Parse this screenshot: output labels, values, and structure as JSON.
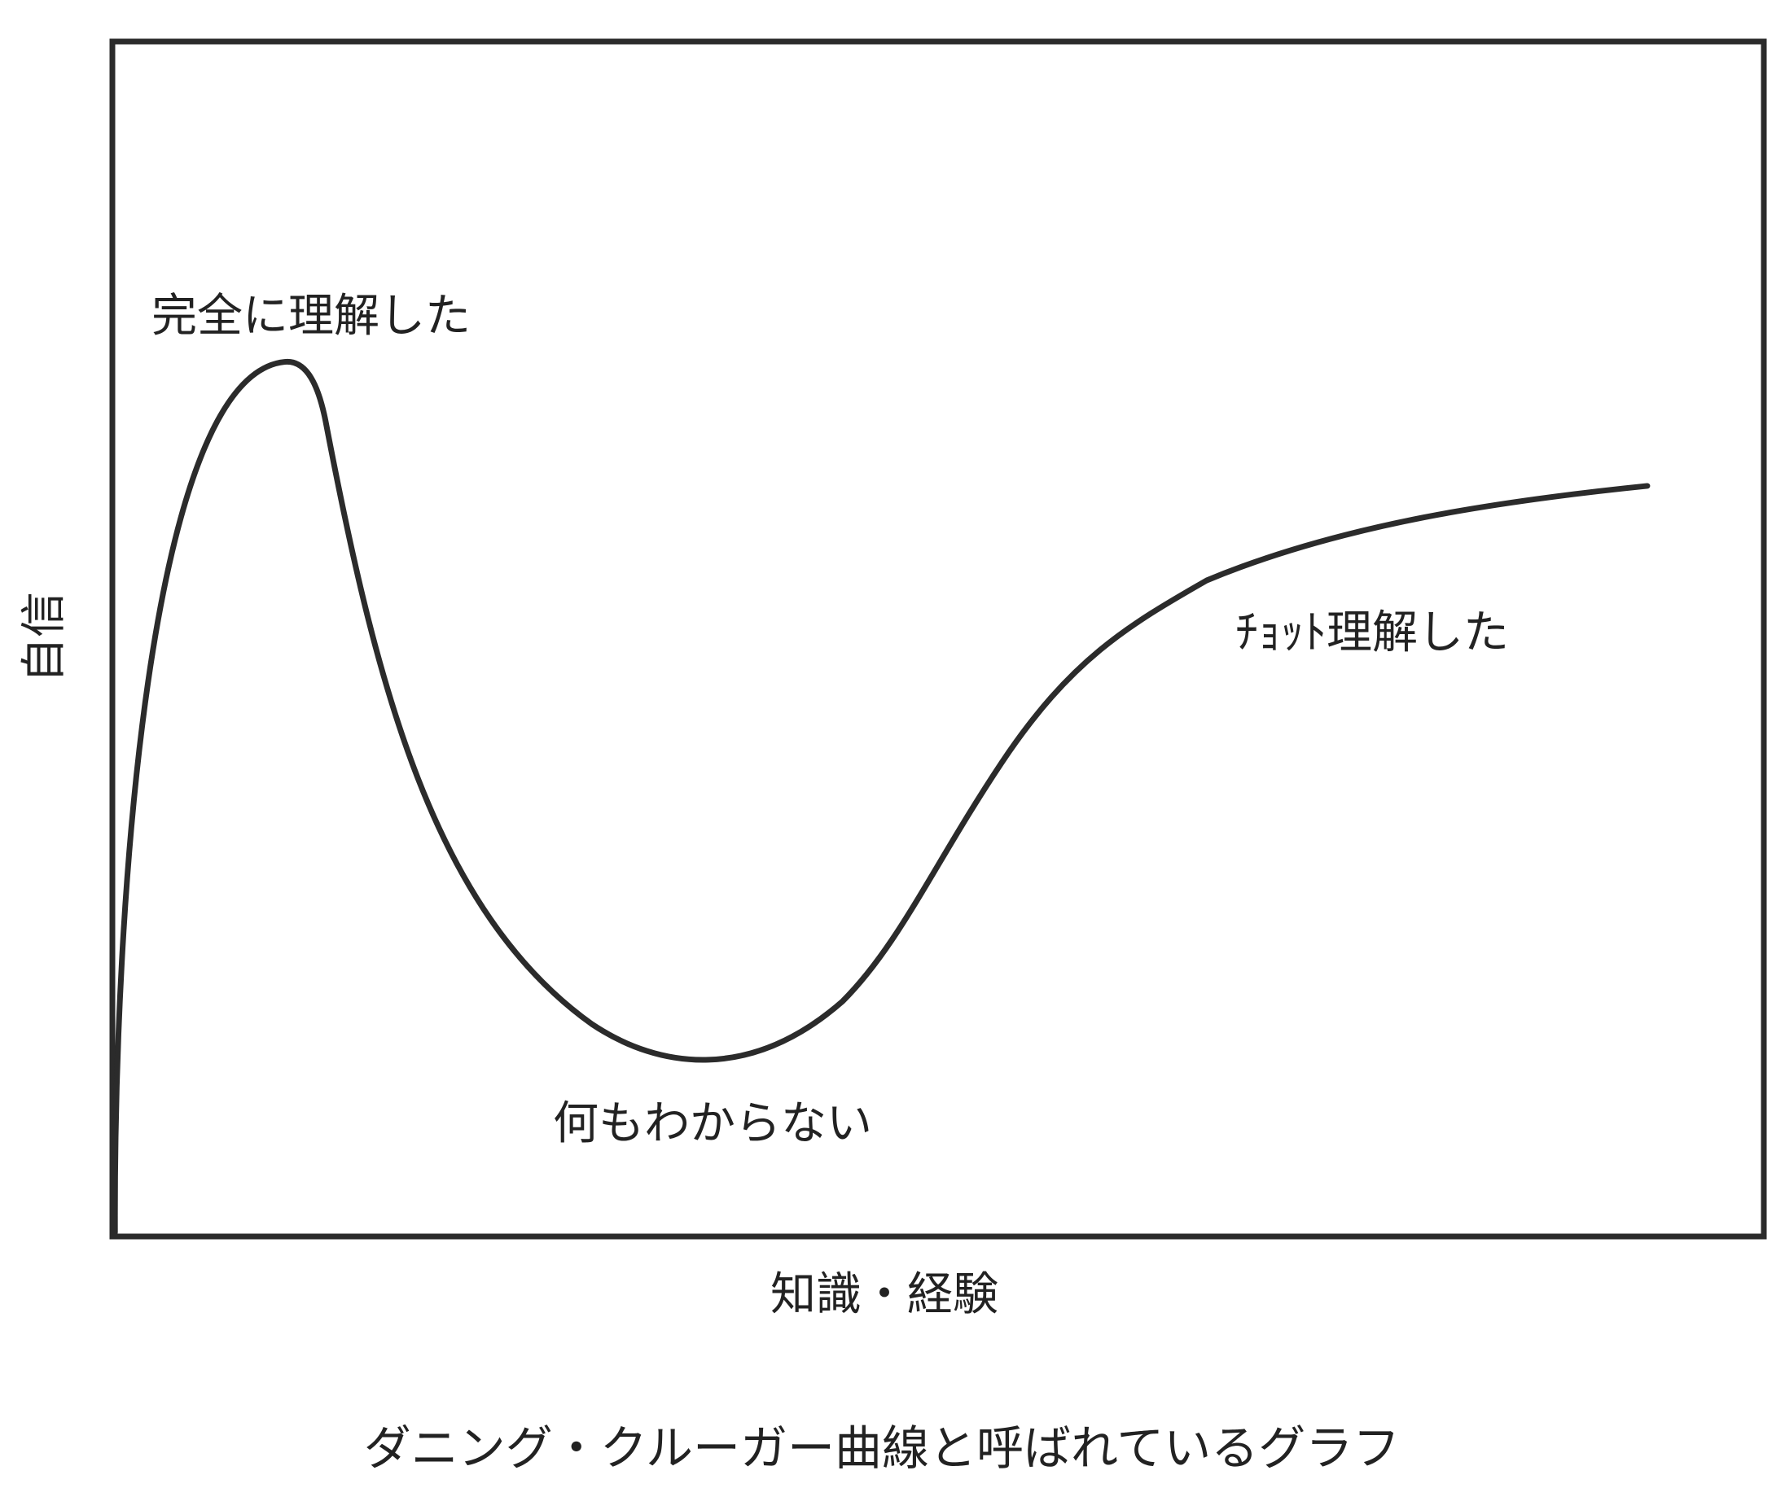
{
  "title": "ダニング・クルーガー曲線と呼ばれているグラフ",
  "axes": {
    "y_label": "自信",
    "x_label": "知識・経験"
  },
  "annotations": [
    "完全に理解した",
    "何もわからない",
    "ﾁｮｯﾄ理解した"
  ]
}
